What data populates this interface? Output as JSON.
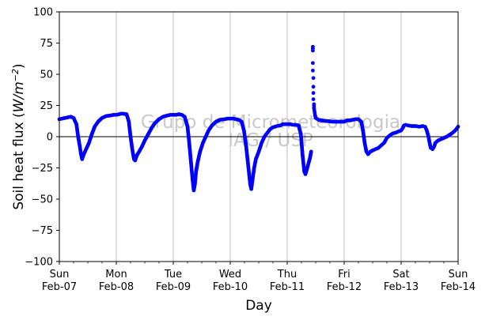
{
  "chart_data": {
    "type": "scatter",
    "ylabel_text": "Soil heat flux (",
    "ylabel_unit_base": "W/m",
    "ylabel_unit_exp": "−2",
    "ylabel_close": ")",
    "xlabel": "Day",
    "ylim": [
      -100,
      100
    ],
    "xlim": [
      0,
      7
    ],
    "yticks": [
      -100,
      -75,
      -50,
      -25,
      0,
      25,
      50,
      75,
      100
    ],
    "ytick_labels": [
      "−100",
      "−75",
      "−50",
      "−25",
      "0",
      "25",
      "50",
      "75",
      "100"
    ],
    "xticks": [
      {
        "x": 0,
        "day": "Sun",
        "date": "Feb-07"
      },
      {
        "x": 1,
        "day": "Mon",
        "date": "Feb-08"
      },
      {
        "x": 2,
        "day": "Tue",
        "date": "Feb-09"
      },
      {
        "x": 3,
        "day": "Wed",
        "date": "Feb-10"
      },
      {
        "x": 4,
        "day": "Thu",
        "date": "Feb-11"
      },
      {
        "x": 5,
        "day": "Fri",
        "date": "Feb-12"
      },
      {
        "x": 6,
        "day": "Sat",
        "date": "Feb-13"
      },
      {
        "x": 7,
        "day": "Sun",
        "date": "Feb-14"
      }
    ],
    "grid": "vertical",
    "zero_line": true,
    "watermark": [
      "Grupo de Micrometeorologia",
      "IAG / USP"
    ],
    "marker_color": "#0000ff",
    "series": [
      {
        "points": [
          [
            0.0,
            14.0
          ],
          [
            0.05,
            14.5
          ],
          [
            0.1,
            15.0
          ],
          [
            0.15,
            15.5
          ],
          [
            0.2,
            16.0
          ],
          [
            0.25,
            15.0
          ],
          [
            0.3,
            10.0
          ],
          [
            0.33,
            0.0
          ],
          [
            0.36,
            -8.0
          ],
          [
            0.38,
            -14.0
          ],
          [
            0.4,
            -18.0
          ],
          [
            0.43,
            -14.0
          ],
          [
            0.47,
            -10.0
          ],
          [
            0.52,
            -5.0
          ],
          [
            0.57,
            2.0
          ],
          [
            0.62,
            8.0
          ],
          [
            0.68,
            12.0
          ],
          [
            0.75,
            15.0
          ],
          [
            0.82,
            16.5
          ],
          [
            0.9,
            17.0
          ],
          [
            0.95,
            17.5
          ],
          [
            1.0,
            17.5
          ],
          [
            1.05,
            18.0
          ],
          [
            1.1,
            18.5
          ],
          [
            1.18,
            18.0
          ],
          [
            1.22,
            12.0
          ],
          [
            1.25,
            0.0
          ],
          [
            1.28,
            -10.0
          ],
          [
            1.31,
            -18.0
          ],
          [
            1.33,
            -19.0
          ],
          [
            1.36,
            -15.0
          ],
          [
            1.4,
            -12.0
          ],
          [
            1.45,
            -8.0
          ],
          [
            1.5,
            -3.0
          ],
          [
            1.56,
            2.0
          ],
          [
            1.62,
            7.0
          ],
          [
            1.68,
            11.0
          ],
          [
            1.75,
            14.0
          ],
          [
            1.82,
            16.0
          ],
          [
            1.9,
            17.0
          ],
          [
            1.95,
            17.5
          ],
          [
            2.0,
            17.5
          ],
          [
            2.05,
            17.5
          ],
          [
            2.1,
            18.0
          ],
          [
            2.15,
            17.5
          ],
          [
            2.2,
            16.0
          ],
          [
            2.25,
            8.0
          ],
          [
            2.28,
            -5.0
          ],
          [
            2.31,
            -20.0
          ],
          [
            2.34,
            -35.0
          ],
          [
            2.36,
            -43.0
          ],
          [
            2.38,
            -38.0
          ],
          [
            2.4,
            -28.0
          ],
          [
            2.43,
            -20.0
          ],
          [
            2.47,
            -12.0
          ],
          [
            2.52,
            -5.0
          ],
          [
            2.57,
            0.0
          ],
          [
            2.62,
            5.0
          ],
          [
            2.68,
            9.0
          ],
          [
            2.75,
            12.0
          ],
          [
            2.82,
            13.5
          ],
          [
            2.9,
            14.0
          ],
          [
            2.95,
            14.5
          ],
          [
            3.0,
            14.5
          ],
          [
            3.05,
            14.5
          ],
          [
            3.1,
            14.0
          ],
          [
            3.15,
            13.5
          ],
          [
            3.2,
            12.0
          ],
          [
            3.24,
            5.0
          ],
          [
            3.28,
            -8.0
          ],
          [
            3.32,
            -25.0
          ],
          [
            3.35,
            -38.0
          ],
          [
            3.37,
            -42.0
          ],
          [
            3.39,
            -35.0
          ],
          [
            3.42,
            -25.0
          ],
          [
            3.45,
            -18.0
          ],
          [
            3.5,
            -12.0
          ],
          [
            3.55,
            -5.0
          ],
          [
            3.6,
            0.0
          ],
          [
            3.65,
            3.0
          ],
          [
            3.7,
            6.0
          ],
          [
            3.75,
            7.5
          ],
          [
            3.82,
            8.5
          ],
          [
            3.88,
            9.0
          ],
          [
            3.92,
            10.0
          ],
          [
            4.0,
            10.0
          ],
          [
            4.05,
            10.0
          ],
          [
            4.1,
            9.5
          ],
          [
            4.15,
            9.5
          ],
          [
            4.2,
            9.0
          ],
          [
            4.24,
            2.0
          ],
          [
            4.27,
            -15.0
          ],
          [
            4.3,
            -28.0
          ],
          [
            4.32,
            -30.0
          ],
          [
            4.34,
            -27.0
          ],
          [
            4.37,
            -22.0
          ],
          [
            4.4,
            -17.0
          ],
          [
            4.42,
            -12.0
          ],
          [
            4.45,
            72.0
          ],
          [
            4.45,
            69.0
          ],
          [
            4.45,
            59.0
          ],
          [
            4.45,
            53.0
          ],
          [
            4.46,
            47.0
          ],
          [
            4.46,
            40.0
          ],
          [
            4.46,
            35.0
          ],
          [
            4.46,
            30.0
          ],
          [
            4.47,
            26.0
          ],
          [
            4.47,
            23.0
          ],
          [
            4.48,
            20.0
          ],
          [
            4.49,
            17.0
          ],
          [
            4.5,
            15.0
          ],
          [
            4.55,
            13.5
          ],
          [
            4.6,
            13.0
          ],
          [
            4.7,
            12.5
          ],
          [
            4.8,
            12.0
          ],
          [
            4.9,
            12.0
          ],
          [
            5.0,
            12.0
          ],
          [
            5.05,
            13.0
          ],
          [
            5.1,
            13.0
          ],
          [
            5.15,
            13.5
          ],
          [
            5.2,
            14.0
          ],
          [
            5.25,
            14.0
          ],
          [
            5.3,
            12.0
          ],
          [
            5.33,
            5.0
          ],
          [
            5.36,
            -5.0
          ],
          [
            5.39,
            -12.0
          ],
          [
            5.42,
            -14.0
          ],
          [
            5.46,
            -12.0
          ],
          [
            5.5,
            -11.0
          ],
          [
            5.55,
            -10.0
          ],
          [
            5.6,
            -9.0
          ],
          [
            5.65,
            -7.0
          ],
          [
            5.7,
            -5.0
          ],
          [
            5.75,
            -1.0
          ],
          [
            5.8,
            1.0
          ],
          [
            5.85,
            2.5
          ],
          [
            5.92,
            3.5
          ],
          [
            5.97,
            4.5
          ],
          [
            6.0,
            5.0
          ],
          [
            6.03,
            7.0
          ],
          [
            6.05,
            9.0
          ],
          [
            6.08,
            9.5
          ],
          [
            6.12,
            9.0
          ],
          [
            6.18,
            8.5
          ],
          [
            6.25,
            8.5
          ],
          [
            6.32,
            8.0
          ],
          [
            6.38,
            8.5
          ],
          [
            6.42,
            8.0
          ],
          [
            6.45,
            5.0
          ],
          [
            6.48,
            0.0
          ],
          [
            6.5,
            -5.0
          ],
          [
            6.52,
            -9.0
          ],
          [
            6.55,
            -10.0
          ],
          [
            6.58,
            -8.0
          ],
          [
            6.6,
            -5.0
          ],
          [
            6.65,
            -3.0
          ],
          [
            6.7,
            -2.0
          ],
          [
            6.75,
            -1.0
          ],
          [
            6.8,
            0.0
          ],
          [
            6.85,
            1.5
          ],
          [
            6.9,
            3.0
          ],
          [
            6.95,
            5.0
          ],
          [
            7.0,
            8.0
          ]
        ]
      }
    ]
  }
}
